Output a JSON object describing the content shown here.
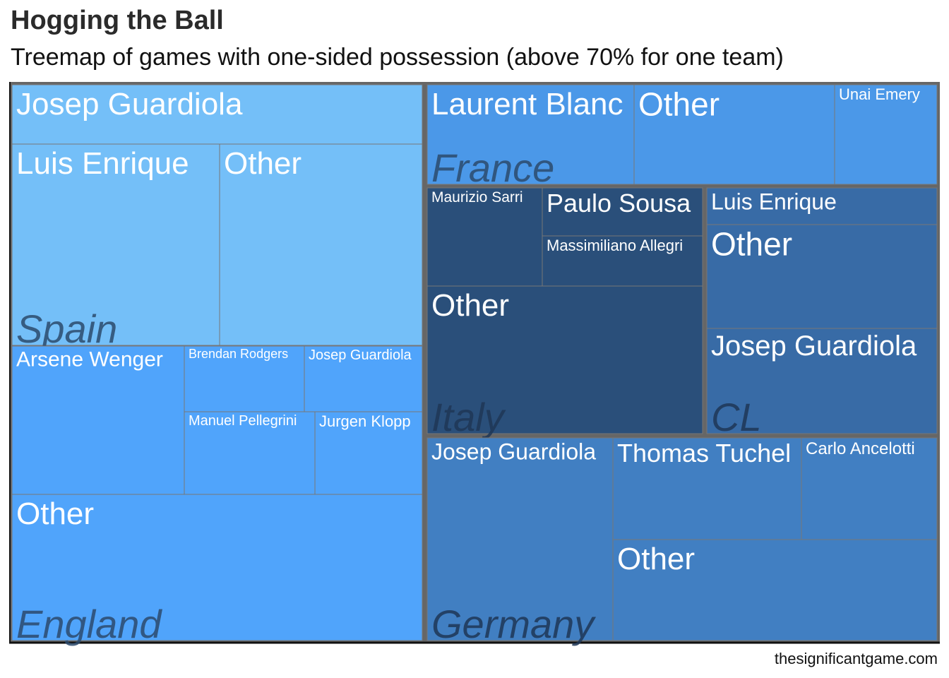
{
  "title": "Hogging the Ball",
  "subtitle": "Treemap of games with one-sided possession (above 70% for one team)",
  "caption": "thesignificantgame.com",
  "colors": {
    "frame": "#666666",
    "cell_border": "#777777",
    "Spain": "#74bff8",
    "England": "#50a4fb",
    "France": "#4b98e8",
    "Italy": "#2a4f7a",
    "CL": "#386ba6",
    "Germany": "#417fc2",
    "group_label_dark": "#2c4a6c",
    "group_label_light": "#1e3656",
    "cell_text": "#ffffff"
  },
  "chart_data": {
    "type": "treemap",
    "groups": [
      {
        "name": "Spain",
        "cells": [
          "Josep Guardiola",
          "Luis Enrique",
          "Other"
        ]
      },
      {
        "name": "England",
        "cells": [
          "Arsene Wenger",
          "Brendan Rodgers",
          "Josep Guardiola",
          "Manuel Pellegrini",
          "Jurgen Klopp",
          "Other"
        ]
      },
      {
        "name": "France",
        "cells": [
          "Laurent Blanc",
          "Other",
          "Unai Emery"
        ]
      },
      {
        "name": "Italy",
        "cells": [
          "Maurizio Sarri",
          "Paulo Sousa",
          "Massimiliano Allegri",
          "Other"
        ]
      },
      {
        "name": "CL",
        "cells": [
          "Luis Enrique",
          "Other",
          "Josep Guardiola"
        ]
      },
      {
        "name": "Germany",
        "cells": [
          "Josep Guardiola",
          "Thomas Tuchel",
          "Carlo Ancelotti",
          "Other"
        ]
      }
    ]
  }
}
